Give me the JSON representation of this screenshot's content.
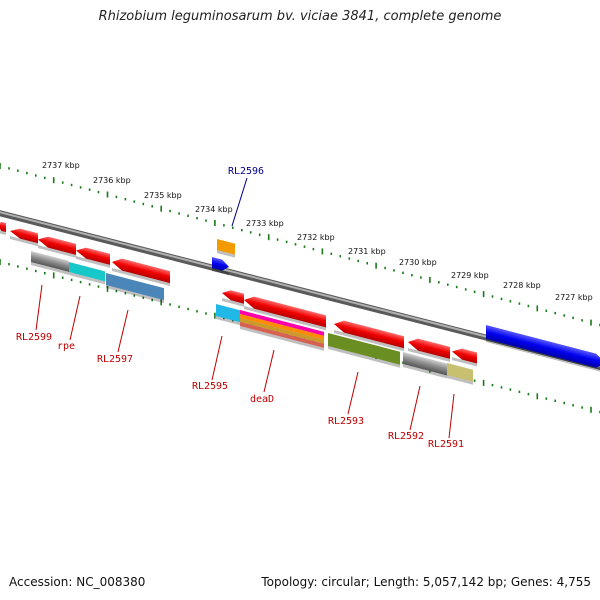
{
  "title": "Rhizobium leguminosarum bv. viciae 3841, complete genome",
  "footer": {
    "accession": "Accession: NC_008380",
    "topology": "Topology: circular; Length: 5,057,142 bp; Genes: 4,755"
  },
  "ruler": {
    "labels": [
      "2737 kbp",
      "2736 kbp",
      "2735 kbp",
      "2734 kbp",
      "2733 kbp",
      "2732 kbp",
      "2731 kbp",
      "2730 kbp",
      "2729 kbp",
      "2728 kbp",
      "2727 kbp"
    ]
  },
  "genes": {
    "labels": [
      "RL2599",
      "rpe",
      "RL2597",
      "RL2596",
      "RL2595",
      "deaD",
      "RL2593",
      "RL2592",
      "RL2591"
    ]
  },
  "colors": {
    "cds": "#ee0000",
    "backbone": "#808080",
    "ticks": "#1a7a1a",
    "label_red": "#c00000",
    "label_blue": "#00008b",
    "blue_gene": "#0000ee"
  }
}
